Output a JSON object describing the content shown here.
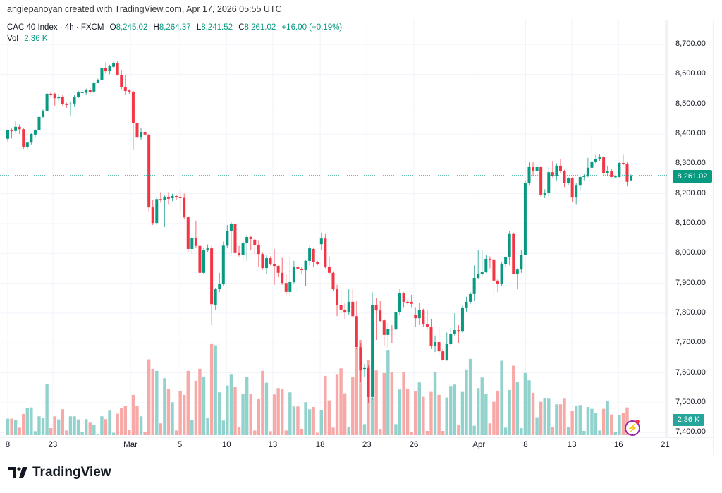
{
  "header": {
    "credit": "angiepanoyan created with TradingView.com, Apr 17, 2026 05:55 UTC"
  },
  "legend": {
    "symbol": "CAC 40 Index · 4h · FXCM",
    "o_label": "O",
    "o": "8,245.02",
    "h_label": "H",
    "h": "8,264.37",
    "l_label": "L",
    "l": "8,241.52",
    "c_label": "C",
    "c": "8,261.02",
    "change": "+16.00 (+0.19%)",
    "vol_label": "Vol",
    "vol": "2.36 K"
  },
  "badges": {
    "last_price": "8,261.02",
    "last_volume": "2.36 K"
  },
  "footer": {
    "brand": "TradingView",
    "logo_icon": "tradingview-logo-icon"
  },
  "colors": {
    "up": "#089981",
    "down": "#f23645",
    "vol_up": "#92d2cc",
    "vol_down": "#f7a9a7",
    "grid": "#f0f3fa"
  },
  "chart_data": {
    "type": "candlestick",
    "title": "CAC 40 Index · 4h · FXCM",
    "price_ticks": [
      "8,700.00",
      "8,600.00",
      "8,500.00",
      "8,400.00",
      "8,300.00",
      "8,200.00",
      "8,100.00",
      "8,000.00",
      "7,900.00",
      "7,800.00",
      "7,700.00",
      "7,600.00",
      "7,500.00",
      "7,400.00"
    ],
    "price_tick_values": [
      8700,
      8600,
      8500,
      8400,
      8300,
      8200,
      8100,
      8000,
      7900,
      7800,
      7700,
      7600,
      7500,
      7400
    ],
    "time_ticks": [
      "8",
      "23",
      "Mar",
      "5",
      "10",
      "13",
      "18",
      "23",
      "26",
      "Apr",
      "8",
      "13",
      "16",
      "21"
    ],
    "time_tick_bar_index": [
      0,
      11.5,
      31.3,
      43.9,
      55.8,
      67.6,
      79.7,
      91.6,
      103.6,
      120.2,
      132.1,
      143.9,
      155.8,
      167.7
    ],
    "ylim": [
      7400,
      8720
    ],
    "last_price": 8261.02,
    "ohlc": [
      [
        8384,
        8415,
        8375,
        8412
      ],
      [
        8412,
        8418,
        8385,
        8410
      ],
      [
        8410,
        8445,
        8405,
        8424
      ],
      [
        8424,
        8432,
        8400,
        8416
      ],
      [
        8416,
        8420,
        8350,
        8357
      ],
      [
        8357,
        8375,
        8350,
        8371
      ],
      [
        8371,
        8402,
        8365,
        8400
      ],
      [
        8398,
        8415,
        8390,
        8412
      ],
      [
        8412,
        8475,
        8408,
        8457
      ],
      [
        8457,
        8482,
        8452,
        8478
      ],
      [
        8478,
        8540,
        8474,
        8535
      ],
      [
        8535,
        8540,
        8525,
        8532
      ],
      [
        8535,
        8538,
        8495,
        8520
      ],
      [
        8520,
        8535,
        8505,
        8525
      ],
      [
        8525,
        8532,
        8495,
        8500
      ],
      [
        8500,
        8505,
        8488,
        8499
      ],
      [
        8499,
        8510,
        8462,
        8502
      ],
      [
        8502,
        8532,
        8490,
        8525
      ],
      [
        8525,
        8545,
        8520,
        8539
      ],
      [
        8539,
        8546,
        8535,
        8540
      ],
      [
        8538,
        8552,
        8532,
        8547
      ],
      [
        8547,
        8555,
        8535,
        8540
      ],
      [
        8542,
        8578,
        8535,
        8572
      ],
      [
        8572,
        8585,
        8570,
        8581
      ],
      [
        8581,
        8630,
        8573,
        8622
      ],
      [
        8622,
        8640,
        8605,
        8610
      ],
      [
        8610,
        8632,
        8600,
        8627
      ],
      [
        8625,
        8645,
        8620,
        8638
      ],
      [
        8638,
        8645,
        8595,
        8598
      ],
      [
        8598,
        8615,
        8550,
        8556
      ],
      [
        8556,
        8598,
        8530,
        8544
      ],
      [
        8546,
        8550,
        8535,
        8542
      ],
      [
        8542,
        8545,
        8346,
        8437
      ],
      [
        8437,
        8450,
        8380,
        8390
      ],
      [
        8390,
        8420,
        8380,
        8407
      ],
      [
        8407,
        8418,
        8385,
        8398
      ],
      [
        8398,
        8400,
        8138,
        8154
      ],
      [
        8154,
        8178,
        8095,
        8102
      ],
      [
        8102,
        8190,
        8095,
        8182
      ],
      [
        8182,
        8205,
        8170,
        8180
      ],
      [
        8180,
        8194,
        8088,
        8190
      ],
      [
        8188,
        8205,
        8165,
        8183
      ],
      [
        8185,
        8200,
        8175,
        8192
      ],
      [
        8192,
        8195,
        8180,
        8188
      ],
      [
        8188,
        8210,
        8140,
        8186
      ],
      [
        8186,
        8200,
        8115,
        8121
      ],
      [
        8121,
        8125,
        8005,
        8015
      ],
      [
        8015,
        8060,
        8000,
        8052
      ],
      [
        8052,
        8110,
        8020,
        8025
      ],
      [
        8025,
        8030,
        7910,
        7935
      ],
      [
        7935,
        8020,
        7930,
        8010
      ],
      [
        8010,
        8030,
        8005,
        8017
      ],
      [
        8017,
        8025,
        7760,
        7830
      ],
      [
        7826,
        7885,
        7810,
        7880
      ],
      [
        7880,
        7935,
        7870,
        7899
      ],
      [
        7899,
        8040,
        7890,
        8026
      ],
      [
        8026,
        8095,
        8020,
        8074
      ],
      [
        8074,
        8105,
        8000,
        8098
      ],
      [
        8098,
        8105,
        7990,
        8001
      ],
      [
        8001,
        8025,
        7990,
        7994
      ],
      [
        7994,
        8048,
        7960,
        8034
      ],
      [
        8034,
        8062,
        7975,
        8055
      ],
      [
        8055,
        8058,
        8010,
        8048
      ],
      [
        8046,
        8050,
        7995,
        8027
      ],
      [
        8027,
        8045,
        7955,
        7998
      ],
      [
        7998,
        8002,
        7945,
        7951
      ],
      [
        7951,
        7995,
        7930,
        7984
      ],
      [
        7984,
        7990,
        7960,
        7965
      ],
      [
        7965,
        8015,
        7895,
        7958
      ],
      [
        7958,
        7960,
        7920,
        7935
      ],
      [
        7935,
        7985,
        7895,
        7901
      ],
      [
        7901,
        7930,
        7862,
        7871
      ],
      [
        7871,
        7990,
        7855,
        7904
      ],
      [
        7904,
        7975,
        7900,
        7956
      ],
      [
        7956,
        7962,
        7935,
        7949
      ],
      [
        7949,
        7955,
        7930,
        7944
      ],
      [
        7944,
        7978,
        7890,
        7975
      ],
      [
        7975,
        8025,
        7960,
        8017
      ],
      [
        8015,
        8020,
        7955,
        7972
      ],
      [
        7972,
        7975,
        7960,
        7963
      ],
      [
        8031,
        8070,
        8010,
        8050
      ],
      [
        8050,
        8065,
        7950,
        7956
      ],
      [
        7956,
        7990,
        7930,
        7935
      ],
      [
        7935,
        7940,
        7875,
        7880
      ],
      [
        7880,
        7895,
        7790,
        7826
      ],
      [
        7826,
        7880,
        7800,
        7812
      ],
      [
        7812,
        7835,
        7780,
        7802
      ],
      [
        7802,
        7880,
        7795,
        7838
      ],
      [
        7838,
        7880,
        7785,
        7790
      ],
      [
        7790,
        7840,
        7680,
        7686
      ],
      [
        7686,
        7700,
        7570,
        7608
      ],
      [
        7613,
        7630,
        7585,
        7616
      ],
      [
        7616,
        7625,
        7500,
        7519
      ],
      [
        7519,
        7870,
        7510,
        7826
      ],
      [
        7826,
        7850,
        7710,
        7809
      ],
      [
        7809,
        7840,
        7770,
        7774
      ],
      [
        7776,
        7780,
        7690,
        7727
      ],
      [
        7727,
        7770,
        7680,
        7748
      ],
      [
        7748,
        7760,
        7700,
        7745
      ],
      [
        7745,
        7825,
        7730,
        7804
      ],
      [
        7804,
        7880,
        7795,
        7866
      ],
      [
        7866,
        7870,
        7820,
        7838
      ],
      [
        7838,
        7845,
        7830,
        7835
      ],
      [
        7838,
        7862,
        7820,
        7831
      ],
      [
        7795,
        7820,
        7755,
        7783
      ],
      [
        7783,
        7835,
        7760,
        7811
      ],
      [
        7811,
        7815,
        7755,
        7762
      ],
      [
        7762,
        7812,
        7745,
        7753
      ],
      [
        7753,
        7780,
        7680,
        7689
      ],
      [
        7689,
        7725,
        7670,
        7703
      ],
      [
        7703,
        7755,
        7660,
        7672
      ],
      [
        7672,
        7680,
        7640,
        7644
      ],
      [
        7644,
        7735,
        7640,
        7696
      ],
      [
        7696,
        7750,
        7690,
        7731
      ],
      [
        7731,
        7800,
        7725,
        7743
      ],
      [
        7743,
        7760,
        7700,
        7738
      ],
      [
        7738,
        7825,
        7735,
        7819
      ],
      [
        7819,
        7855,
        7805,
        7838
      ],
      [
        7838,
        7870,
        7830,
        7864
      ],
      [
        7864,
        7960,
        7840,
        7918
      ],
      [
        7918,
        8010,
        7915,
        7932
      ],
      [
        7932,
        8010,
        7925,
        7939
      ],
      [
        7939,
        7995,
        7935,
        7982
      ],
      [
        7982,
        7990,
        7950,
        7980
      ],
      [
        7980,
        7985,
        7855,
        7909
      ],
      [
        7909,
        7915,
        7870,
        7899
      ],
      [
        7899,
        7970,
        7890,
        7963
      ],
      [
        7963,
        7990,
        7955,
        7987
      ],
      [
        7987,
        8075,
        7960,
        8065
      ],
      [
        8065,
        8070,
        7930,
        7932
      ],
      [
        7932,
        7950,
        7880,
        7946
      ],
      [
        7946,
        8010,
        7935,
        7994
      ],
      [
        7994,
        8245,
        7994,
        8237
      ],
      [
        8237,
        8305,
        8230,
        8289
      ],
      [
        8289,
        8305,
        8260,
        8277
      ],
      [
        8277,
        8295,
        8255,
        8289
      ],
      [
        8289,
        8292,
        8190,
        8197
      ],
      [
        8197,
        8215,
        8185,
        8202
      ],
      [
        8202,
        8290,
        8190,
        8272
      ],
      [
        8272,
        8310,
        8255,
        8260
      ],
      [
        8260,
        8302,
        8245,
        8294
      ],
      [
        8294,
        8315,
        8270,
        8277
      ],
      [
        8277,
        8280,
        8222,
        8235
      ],
      [
        8235,
        8255,
        8230,
        8251
      ],
      [
        8251,
        8255,
        8172,
        8187
      ],
      [
        8187,
        8235,
        8165,
        8227
      ],
      [
        8227,
        8262,
        8210,
        8256
      ],
      [
        8256,
        8268,
        8245,
        8260
      ],
      [
        8260,
        8320,
        8255,
        8287
      ],
      [
        8287,
        8395,
        8275,
        8308
      ],
      [
        8308,
        8330,
        8302,
        8315
      ],
      [
        8315,
        8332,
        8310,
        8324
      ],
      [
        8324,
        8326,
        8262,
        8270
      ],
      [
        8270,
        8292,
        8262,
        8277
      ],
      [
        8277,
        8282,
        8255,
        8256
      ],
      [
        8256,
        8262,
        8252,
        8258
      ],
      [
        8256,
        8305,
        8255,
        8303
      ],
      [
        8303,
        8330,
        8295,
        8300
      ],
      [
        8300,
        8305,
        8225,
        8240
      ],
      [
        8245.02,
        8264.37,
        8241.52,
        8261.02
      ]
    ],
    "volume_k": [
      18.7,
      18.7,
      17.4,
      8.5,
      24,
      30.7,
      31.5,
      4.5,
      21.4,
      20,
      58.2,
      8,
      21.4,
      17.9,
      29.4,
      5.3,
      21.4,
      21.4,
      17.9,
      3.5,
      18.2,
      14.2,
      11.5,
      1.3,
      21.4,
      18.2,
      27.8,
      2.7,
      24.3,
      30.7,
      33.1,
      5.9,
      45.7,
      33.1,
      21.4,
      4,
      86,
      75.3,
      72.9,
      13.4,
      64.6,
      52.6,
      37.4,
      5.3,
      50.5,
      45.7,
      72.9,
      17.1,
      61.7,
      75.3,
      66.5,
      20,
      103.3,
      102,
      48.6,
      16.6,
      56.3,
      69.4,
      54.5,
      9.3,
      46.7,
      65.9,
      46.7,
      5.3,
      40.9,
      72.9,
      59.5,
      4.5,
      46.2,
      53.4,
      52.3,
      5.3,
      48.6,
      32.6,
      32.6,
      7.2,
      37.4,
      29.4,
      32,
      2.7,
      28.8,
      67.3,
      39.5,
      8.5,
      69.4,
      75.8,
      47.5,
      9.3,
      65.9,
      98.8,
      108,
      12.5,
      85.4,
      42.7,
      73.4,
      7.2,
      70.5,
      96.7,
      71.8,
      12.5,
      51.8,
      71.8,
      52.9,
      4,
      50.2,
      59.8,
      43.5,
      4.8,
      49.1,
      71.8,
      45.7,
      4.8,
      42.7,
      55.8,
      57.4,
      11.2,
      49.1,
      74.5,
      86.5,
      10.7,
      53.4,
      65.4,
      46.7,
      13.4,
      37.9,
      50.5,
      84.4,
      8.5,
      51.3,
      78.8,
      60.6,
      8,
      70.5,
      62.2,
      48.1,
      20.3,
      37.9,
      42.2,
      41.4,
      9.6,
      35,
      35,
      41.4,
      9.1,
      27.2,
      33.1,
      34.2,
      4.8,
      32,
      29.9,
      24.8,
      5.3,
      29.9,
      38.7,
      23.5,
      4,
      23.2,
      24.8,
      31.5,
      2.36
    ]
  }
}
